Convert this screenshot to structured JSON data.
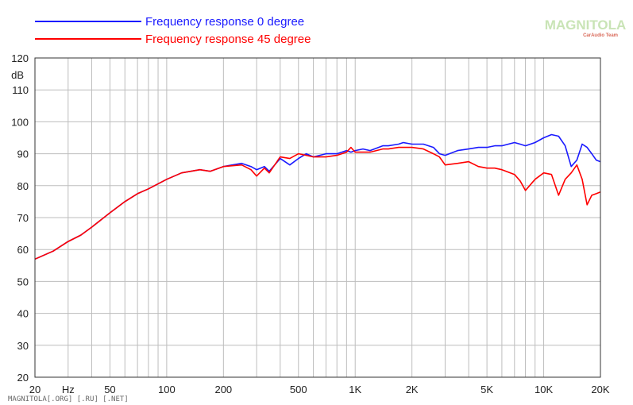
{
  "chart_data": {
    "type": "line",
    "title": "",
    "xlabel": "",
    "ylabel": "dB",
    "x_scale": "log",
    "xlim": [
      20,
      20000
    ],
    "ylim": [
      20,
      120
    ],
    "grid": true,
    "legend_position": "top-left",
    "x_tick_labels": [
      "20",
      "Hz",
      "50",
      "100",
      "200",
      "500",
      "1K",
      "2K",
      "5K",
      "10K",
      "20K"
    ],
    "y_ticks": [
      20,
      30,
      40,
      50,
      60,
      70,
      80,
      90,
      100,
      110,
      120
    ],
    "series": [
      {
        "name": "Frequency response 0 degree",
        "color": "#1a1aff",
        "x": [
          20,
          25,
          30,
          35,
          40,
          50,
          60,
          70,
          80,
          100,
          120,
          150,
          170,
          200,
          250,
          280,
          300,
          330,
          350,
          400,
          450,
          500,
          550,
          600,
          700,
          800,
          900,
          950,
          1000,
          1100,
          1200,
          1400,
          1500,
          1700,
          1800,
          2000,
          2300,
          2600,
          2800,
          3000,
          3500,
          4000,
          4500,
          5000,
          5500,
          6000,
          7000,
          7500,
          8000,
          9000,
          10000,
          11000,
          12000,
          13000,
          14000,
          15000,
          16000,
          17000,
          18000,
          19000,
          20000
        ],
        "y": [
          57,
          59.5,
          62.5,
          64.5,
          67,
          71.5,
          75,
          77.5,
          79,
          82,
          84,
          85,
          84.5,
          86,
          87,
          86,
          85,
          86,
          84.5,
          88.5,
          86.5,
          88.5,
          90,
          89,
          90,
          90,
          91,
          90.5,
          91,
          91.5,
          91,
          92.5,
          92.5,
          93,
          93.5,
          93,
          93,
          92,
          90,
          89.5,
          91,
          91.5,
          92,
          92,
          92.5,
          92.5,
          93.5,
          93,
          92.5,
          93.5,
          95,
          96,
          95.5,
          92.5,
          86,
          88,
          93,
          92,
          90,
          88,
          87.5
        ]
      },
      {
        "name": "Frequency response 45 degree",
        "color": "#ff0000",
        "x": [
          20,
          25,
          30,
          35,
          40,
          50,
          60,
          70,
          80,
          100,
          120,
          150,
          170,
          200,
          250,
          280,
          300,
          330,
          350,
          400,
          450,
          500,
          550,
          600,
          700,
          800,
          900,
          950,
          1000,
          1100,
          1200,
          1400,
          1500,
          1700,
          1800,
          2000,
          2300,
          2600,
          2800,
          3000,
          3500,
          4000,
          4500,
          5000,
          5500,
          6000,
          7000,
          7500,
          8000,
          9000,
          10000,
          11000,
          12000,
          13000,
          14000,
          15000,
          16000,
          17000,
          18000,
          19000,
          20000
        ],
        "y": [
          57,
          59.5,
          62.5,
          64.5,
          67,
          71.5,
          75,
          77.5,
          79,
          82,
          84,
          85,
          84.5,
          86,
          86.5,
          85,
          83,
          85.5,
          84,
          89,
          88.5,
          90,
          89.5,
          89,
          89,
          89.5,
          90.5,
          92,
          90.5,
          90.5,
          90.5,
          91.5,
          91.5,
          92,
          92,
          92,
          91.5,
          90,
          89,
          86.5,
          87,
          87.5,
          86,
          85.5,
          85.5,
          85,
          83.5,
          81.5,
          78.5,
          82,
          84,
          83.5,
          77,
          82,
          84,
          86.5,
          82,
          74,
          77,
          77.5,
          78
        ]
      }
    ]
  },
  "watermark": {
    "logo_text": "MAGNITOLA",
    "logo_subtext": "CarAudio Team"
  },
  "footer_text": "MAGNITOLA[.ORG] [.RU] [.NET]"
}
